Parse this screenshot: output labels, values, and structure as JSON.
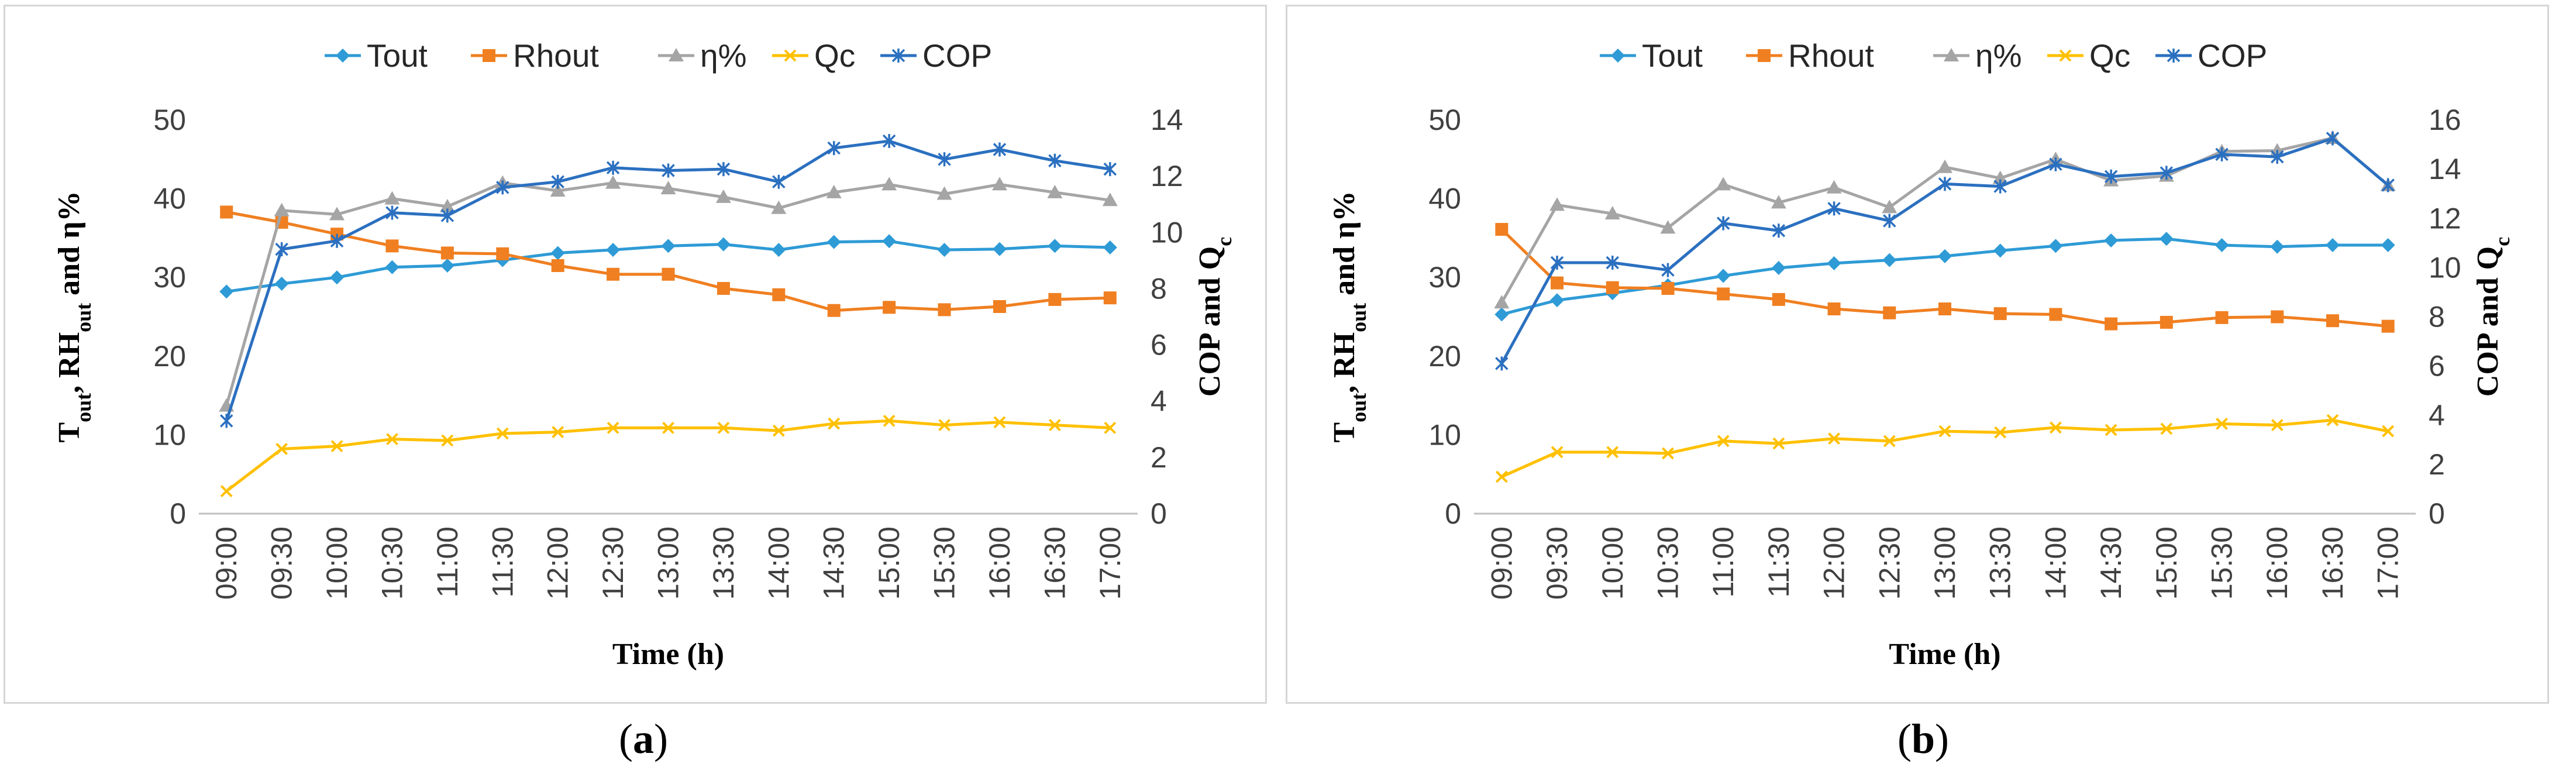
{
  "chart_data": [
    {
      "type": "line",
      "panel_label": "a",
      "xlabel": "Time (h)",
      "ylabel_left": "Tout, RHout and η%",
      "ylabel_left_parts": {
        "t": "T",
        "t_sub": "out",
        "sep": ", ",
        "rh": "RH",
        "rh_sub": "out",
        "rest": " and η%"
      },
      "ylabel_right": "COP and Qc",
      "ylabel_right_parts": {
        "main": "COP and Q",
        "sub": "c"
      },
      "categories": [
        "09:00",
        "09:30",
        "10:00",
        "10:30",
        "11:00",
        "11:30",
        "12:00",
        "12:30",
        "13:00",
        "13:30",
        "14:00",
        "14:30",
        "15:00",
        "15:30",
        "16:00",
        "16:30",
        "17:00"
      ],
      "ylim_left": [
        0,
        50
      ],
      "yticks_left": [
        0,
        10,
        20,
        30,
        40,
        50
      ],
      "ylim_right": [
        0,
        14
      ],
      "yticks_right": [
        0,
        2,
        4,
        6,
        8,
        10,
        12,
        14
      ],
      "series": [
        {
          "name": "Tout",
          "axis": "left",
          "color": "#2e9bd6",
          "marker": "diamond",
          "values": [
            28.2,
            29.2,
            30.0,
            31.3,
            31.5,
            32.2,
            33.1,
            33.5,
            34.0,
            34.2,
            33.5,
            34.5,
            34.6,
            33.5,
            33.6,
            34.0,
            33.8
          ]
        },
        {
          "name": "Rhout",
          "axis": "left",
          "color": "#f07f21",
          "marker": "square",
          "values": [
            38.3,
            37.0,
            35.5,
            34.0,
            33.1,
            33.0,
            31.5,
            30.4,
            30.4,
            28.6,
            27.8,
            25.8,
            26.2,
            25.9,
            26.3,
            27.2,
            27.4
          ]
        },
        {
          "name": "η%",
          "axis": "left",
          "color": "#a5a5a5",
          "marker": "triangle",
          "values": [
            13.7,
            38.5,
            38.0,
            40.0,
            39.0,
            42.0,
            41.0,
            42.0,
            41.3,
            40.2,
            38.8,
            40.8,
            41.8,
            40.6,
            41.8,
            40.8,
            39.8
          ]
        },
        {
          "name": "Qc",
          "axis": "right",
          "color": "#ffc000",
          "marker": "x",
          "values": [
            0.8,
            2.3,
            2.4,
            2.65,
            2.6,
            2.85,
            2.9,
            3.05,
            3.05,
            3.05,
            2.95,
            3.2,
            3.3,
            3.15,
            3.25,
            3.15,
            3.05
          ]
        },
        {
          "name": "COP",
          "axis": "right",
          "color": "#2b70c0",
          "marker": "star",
          "values": [
            3.3,
            9.4,
            9.7,
            10.7,
            10.6,
            11.6,
            11.8,
            12.3,
            12.2,
            12.25,
            11.8,
            13.0,
            13.25,
            12.6,
            12.95,
            12.55,
            12.25
          ]
        }
      ],
      "legend": "top-center"
    },
    {
      "type": "line",
      "panel_label": "b",
      "xlabel": "Time (h)",
      "ylabel_left": "Tout, RHout and η%",
      "ylabel_left_parts": {
        "t": "T",
        "t_sub": "out",
        "sep": ", ",
        "rh": "RH",
        "rh_sub": "out",
        "rest": " and η%"
      },
      "ylabel_right": "COP and Qc",
      "ylabel_right_parts": {
        "main": "COP and Q",
        "sub": "c"
      },
      "categories": [
        "09:00",
        "09:30",
        "10:00",
        "10:30",
        "11:00",
        "11:30",
        "12:00",
        "12:30",
        "13:00",
        "13:30",
        "14:00",
        "14:30",
        "15:00",
        "15:30",
        "16:00",
        "16:30",
        "17:00"
      ],
      "ylim_left": [
        0,
        50
      ],
      "yticks_left": [
        0,
        10,
        20,
        30,
        40,
        50
      ],
      "ylim_right": [
        0,
        16
      ],
      "yticks_right": [
        0,
        2,
        4,
        6,
        8,
        10,
        12,
        14,
        16
      ],
      "series": [
        {
          "name": "Tout",
          "axis": "left",
          "color": "#2e9bd6",
          "marker": "diamond",
          "values": [
            25.3,
            27.1,
            28.0,
            29.0,
            30.2,
            31.2,
            31.8,
            32.2,
            32.7,
            33.4,
            34.0,
            34.7,
            34.9,
            34.1,
            33.9,
            34.1,
            34.1
          ]
        },
        {
          "name": "Rhout",
          "axis": "left",
          "color": "#f07f21",
          "marker": "square",
          "values": [
            36.1,
            29.3,
            28.7,
            28.6,
            27.9,
            27.2,
            26.0,
            25.5,
            26.0,
            25.4,
            25.3,
            24.1,
            24.3,
            24.9,
            25.0,
            24.5,
            23.8
          ]
        },
        {
          "name": "η%",
          "axis": "left",
          "color": "#a5a5a5",
          "marker": "triangle",
          "values": [
            26.8,
            39.2,
            38.1,
            36.3,
            41.8,
            39.5,
            41.4,
            38.9,
            44.0,
            42.6,
            45.0,
            42.3,
            42.9,
            46.0,
            46.1,
            47.7,
            41.7
          ]
        },
        {
          "name": "Qc",
          "axis": "right",
          "color": "#ffc000",
          "marker": "x",
          "values": [
            1.5,
            2.5,
            2.5,
            2.45,
            2.95,
            2.85,
            3.05,
            2.95,
            3.35,
            3.3,
            3.5,
            3.4,
            3.45,
            3.65,
            3.6,
            3.8,
            3.35
          ]
        },
        {
          "name": "COP",
          "axis": "right",
          "color": "#2b70c0",
          "marker": "star",
          "values": [
            6.1,
            10.2,
            10.2,
            9.9,
            11.8,
            11.5,
            12.4,
            11.9,
            13.4,
            13.3,
            14.2,
            13.7,
            13.85,
            14.6,
            14.5,
            15.25,
            13.35
          ]
        }
      ],
      "legend": "top-center"
    }
  ]
}
